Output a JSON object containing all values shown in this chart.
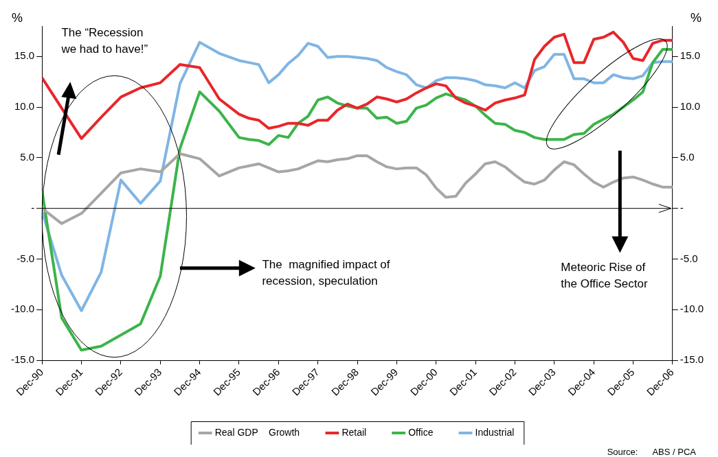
{
  "chart_data": {
    "type": "line",
    "ylabel": "%",
    "y2label": "%",
    "x": [
      "1990-12",
      "1991-06",
      "1991-12",
      "1992-06",
      "1992-12",
      "1993-06",
      "1993-12",
      "1994-06",
      "1994-12",
      "1995-06",
      "1995-12",
      "1996-03",
      "1996-06",
      "1996-09",
      "1996-12",
      "1997-03",
      "1997-06",
      "1997-09",
      "1997-12",
      "1998-03",
      "1998-06",
      "1998-09",
      "1998-12",
      "1999-03",
      "1999-06",
      "1999-09",
      "1999-12",
      "2000-03",
      "2000-06",
      "2000-09",
      "2000-12",
      "2001-03",
      "2001-06",
      "2001-09",
      "2001-12",
      "2002-03",
      "2002-06",
      "2002-09",
      "2002-12",
      "2003-03",
      "2003-06",
      "2003-09",
      "2003-12",
      "2004-03",
      "2004-06",
      "2004-09",
      "2004-12",
      "2005-03",
      "2005-06",
      "2005-09",
      "2005-12",
      "2006-03",
      "2006-06",
      "2006-09",
      "2006-12"
    ],
    "xlim": [
      "1990-12",
      "2006-12"
    ],
    "xticks": [
      {
        "value": "1990-12",
        "label": "Dec-90"
      },
      {
        "value": "1991-12",
        "label": "Dec-91"
      },
      {
        "value": "1992-12",
        "label": "Dec-92"
      },
      {
        "value": "1993-12",
        "label": "Dec-93"
      },
      {
        "value": "1994-12",
        "label": "Dec-94"
      },
      {
        "value": "1995-12",
        "label": "Dec-95"
      },
      {
        "value": "1996-12",
        "label": "Dec-96"
      },
      {
        "value": "1997-12",
        "label": "Dec-97"
      },
      {
        "value": "1998-12",
        "label": "Dec-98"
      },
      {
        "value": "1999-12",
        "label": "Dec-99"
      },
      {
        "value": "2000-12",
        "label": "Dec-00"
      },
      {
        "value": "2001-12",
        "label": "Dec-01"
      },
      {
        "value": "2002-12",
        "label": "Dec-02"
      },
      {
        "value": "2003-12",
        "label": "Dec-03"
      },
      {
        "value": "2004-12",
        "label": "Dec-04"
      },
      {
        "value": "2005-12",
        "label": "Dec-05"
      },
      {
        "value": "2006-12",
        "label": "Dec-06"
      }
    ],
    "ylim": [
      -15,
      18
    ],
    "yticks": [
      {
        "value": -15,
        "label": "-15.0"
      },
      {
        "value": -10,
        "label": "-10.0"
      },
      {
        "value": -5,
        "label": "-5.0"
      },
      {
        "value": 0,
        "label": "-"
      },
      {
        "value": 5,
        "label": "5.0"
      },
      {
        "value": 10,
        "label": "10.0"
      },
      {
        "value": 15,
        "label": "15.0"
      }
    ],
    "y2lim": [
      -15,
      18
    ],
    "y2ticks": [
      {
        "value": -15,
        "label": "-15.0"
      },
      {
        "value": -10,
        "label": "-10.0"
      },
      {
        "value": -5,
        "label": "-5.0"
      },
      {
        "value": 0,
        "label": "-"
      },
      {
        "value": 5,
        "label": "5.0"
      },
      {
        "value": 10,
        "label": "10.0"
      },
      {
        "value": 15,
        "label": "15.0"
      }
    ],
    "marker": "none",
    "legend": "bottom",
    "series": [
      {
        "name": "Real GDP    Growth",
        "color": "#a6a6a6",
        "values": [
          0,
          -1.5,
          -0.5,
          1.5,
          3.5,
          3.9,
          3.6,
          5.4,
          4.9,
          3.2,
          4.0,
          4.2,
          4.4,
          4.0,
          3.6,
          3.7,
          3.9,
          4.3,
          4.7,
          4.6,
          4.8,
          4.9,
          5.2,
          5.2,
          4.6,
          4.1,
          3.9,
          4.0,
          4.0,
          3.3,
          2.0,
          1.1,
          1.2,
          2.5,
          3.4,
          4.4,
          4.6,
          4.1,
          3.3,
          2.6,
          2.4,
          2.8,
          3.8,
          4.6,
          4.3,
          3.4,
          2.6,
          2.1,
          2.6,
          3.0,
          3.1,
          2.8,
          2.4,
          2.1,
          2.1
        ]
      },
      {
        "name": "Retail",
        "color": "#e8262a",
        "values": [
          12.9,
          9.9,
          6.9,
          9.0,
          11.0,
          11.9,
          12.4,
          14.2,
          13.9,
          10.8,
          9.3,
          8.9,
          8.7,
          7.9,
          8.1,
          8.4,
          8.4,
          8.2,
          8.7,
          8.7,
          9.7,
          10.3,
          9.9,
          10.3,
          11.0,
          10.8,
          10.5,
          10.8,
          11.4,
          11.9,
          12.3,
          12.1,
          10.9,
          10.4,
          10.1,
          9.7,
          10.4,
          10.7,
          10.9,
          11.2,
          14.7,
          16.0,
          16.9,
          17.2,
          14.4,
          14.4,
          16.7,
          16.9,
          17.4,
          16.4,
          14.8,
          14.6,
          16.3,
          16.6,
          16.6
        ]
      },
      {
        "name": "Office",
        "color": "#3cb44a",
        "values": [
          1.7,
          -10.8,
          -14.0,
          -13.6,
          -12.5,
          -11.4,
          -6.7,
          5.9,
          11.5,
          9.6,
          7.0,
          6.8,
          6.7,
          6.3,
          7.2,
          7.0,
          8.4,
          9.1,
          10.7,
          11.0,
          10.4,
          10.1,
          9.9,
          9.9,
          8.9,
          9.0,
          8.4,
          8.6,
          9.9,
          10.2,
          10.9,
          11.3,
          11.0,
          10.7,
          10.1,
          9.2,
          8.4,
          8.3,
          7.7,
          7.5,
          7.0,
          6.8,
          6.8,
          6.8,
          7.3,
          7.4,
          8.3,
          8.8,
          9.3,
          10.0,
          10.7,
          11.5,
          14.4,
          15.7,
          15.7
        ]
      },
      {
        "name": "Industrial",
        "color": "#7fb5e4",
        "values": [
          -0.3,
          -6.6,
          -10.1,
          -6.3,
          2.8,
          0.5,
          2.7,
          12.3,
          16.4,
          15.3,
          14.6,
          14.4,
          14.2,
          12.4,
          13.2,
          14.3,
          15.1,
          16.3,
          16.0,
          14.9,
          15.0,
          15.0,
          14.9,
          14.8,
          14.6,
          13.9,
          13.5,
          13.2,
          12.2,
          11.9,
          12.6,
          12.9,
          12.9,
          12.8,
          12.6,
          12.2,
          12.1,
          11.9,
          12.4,
          11.9,
          13.6,
          14.0,
          15.2,
          15.2,
          12.8,
          12.8,
          12.4,
          12.4,
          13.2,
          12.9,
          12.8,
          13.1,
          14.4,
          14.5,
          14.5
        ]
      }
    ],
    "ref_lines": [
      {
        "axis": "y",
        "value": 0,
        "color": "#000000"
      }
    ],
    "annotations": [
      "The “Recession we had to have!”",
      "The  magnified impact of recession, speculation",
      "Meteoric Rise of the Office Sector",
      "Source:      ABS / PCA"
    ]
  }
}
